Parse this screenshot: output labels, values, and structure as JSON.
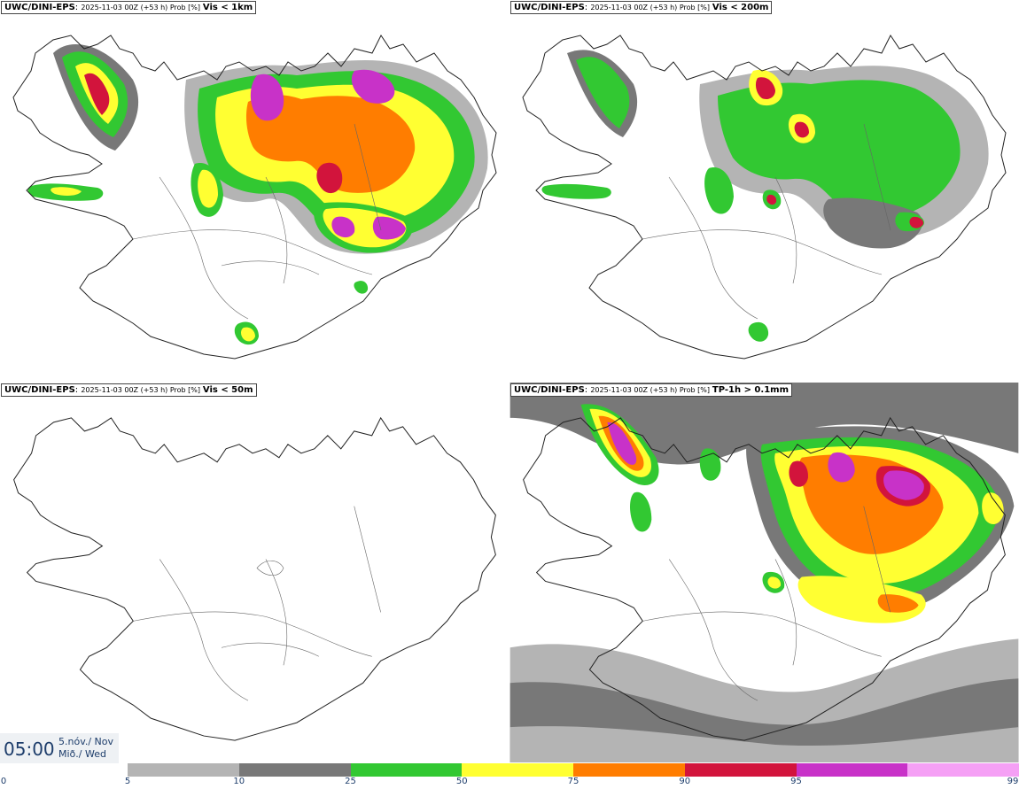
{
  "panels": [
    {
      "id": "p1",
      "model": "UWC/DINI-EPS",
      "run": "2025-11-03 00Z (+53 h) Prob [%]",
      "variable": "Vis < 1km"
    },
    {
      "id": "p2",
      "model": "UWC/DINI-EPS",
      "run": "2025-11-03 00Z (+53 h) Prob [%]",
      "variable": "Vis < 200m"
    },
    {
      "id": "p3",
      "model": "UWC/DINI-EPS",
      "run": "2025-11-03 00Z (+53 h) Prob [%]",
      "variable": "Vis < 50m"
    },
    {
      "id": "p4",
      "model": "UWC/DINI-EPS",
      "run": "2025-11-03 00Z (+53 h) Prob [%]",
      "variable": "TP-1h > 0.1mm"
    }
  ],
  "valid_time": {
    "time": "05:00",
    "date_line1": "5.nóv./ Nov",
    "date_line2": "Mið./ Wed"
  },
  "colorbar": {
    "labels": [
      "0",
      "5",
      "10",
      "25",
      "50",
      "75",
      "90",
      "95",
      "99"
    ],
    "colors": [
      "#b4b4b4",
      "#787878",
      "#32c832",
      "#ffff32",
      "#ff7d00",
      "#d2143c",
      "#c832c8",
      "#f5a0f5"
    ]
  }
}
